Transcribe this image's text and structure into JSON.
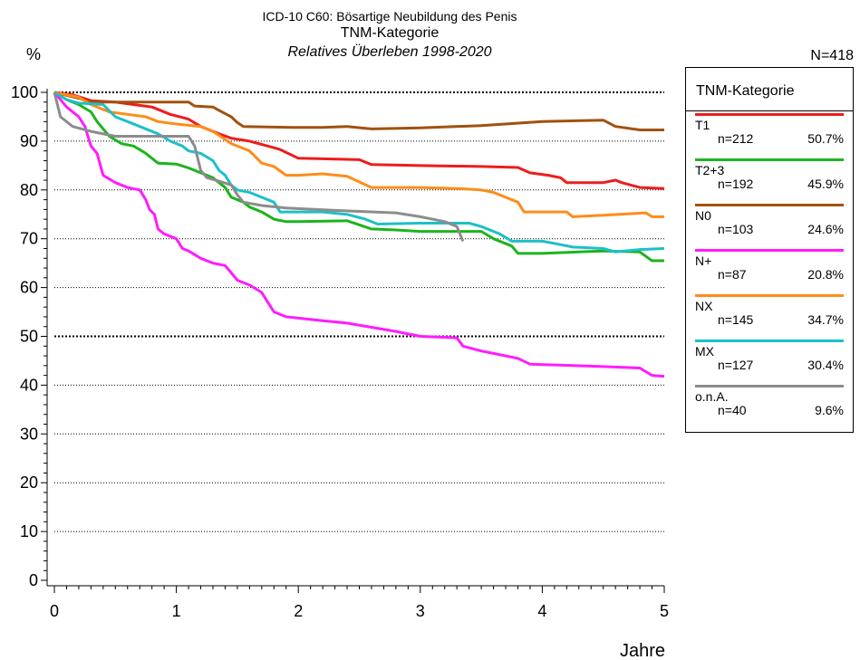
{
  "header": {
    "line1": "ICD-10 C60: Bösartige Neubildung des Penis",
    "line2": "TNM-Kategorie",
    "line3": "Relatives Überleben 1998-2020",
    "n_total": "N=418"
  },
  "legend": {
    "title": "TNM-Kategorie",
    "entries": [
      {
        "label": "T1",
        "n": "n=212",
        "pct": "50.7%",
        "color": "#ee1c1c"
      },
      {
        "label": "T2+3",
        "n": "n=192",
        "pct": "45.9%",
        "color": "#1cb41c"
      },
      {
        "label": "N0",
        "n": "n=103",
        "pct": "24.6%",
        "color": "#a0520f"
      },
      {
        "label": "N+",
        "n": "n=87",
        "pct": "20.8%",
        "color": "#ff1cff"
      },
      {
        "label": "NX",
        "n": "n=145",
        "pct": "34.7%",
        "color": "#ff8c1a"
      },
      {
        "label": "MX",
        "n": "n=127",
        "pct": "30.4%",
        "color": "#1cc0c8"
      },
      {
        "label": "o.n.A.",
        "n": "n=40",
        "pct": "9.6%",
        "color": "#8c8c8c"
      }
    ]
  },
  "chart_data": {
    "type": "line",
    "title": "ICD-10 C60: Bösartige Neubildung des Penis",
    "subtitle": "TNM-Kategorie / Relatives Überleben 1998-2020",
    "xlabel": "Jahre",
    "ylabel": "%",
    "xlim": [
      0,
      5
    ],
    "ylim": [
      0,
      100
    ],
    "x_ticks": [
      0,
      1,
      2,
      3,
      4,
      5
    ],
    "y_ticks": [
      0,
      10,
      20,
      30,
      40,
      50,
      60,
      70,
      80,
      90,
      100
    ],
    "grid": "horizontal dotted, heavier at 50 and 100",
    "legend_position": "right",
    "series": [
      {
        "name": "T1",
        "color": "#ee1c1c",
        "points": [
          [
            0,
            100
          ],
          [
            0.15,
            99.5
          ],
          [
            0.3,
            98.3
          ],
          [
            0.5,
            98
          ],
          [
            0.65,
            97.5
          ],
          [
            0.8,
            97
          ],
          [
            0.95,
            95.5
          ],
          [
            1.1,
            94.5
          ],
          [
            1.2,
            93
          ],
          [
            1.35,
            91.5
          ],
          [
            1.45,
            90.6
          ],
          [
            1.6,
            90
          ],
          [
            1.75,
            89
          ],
          [
            1.85,
            88.3
          ],
          [
            2.0,
            86.5
          ],
          [
            2.5,
            86.2
          ],
          [
            2.6,
            85.2
          ],
          [
            3.0,
            85
          ],
          [
            3.5,
            84.8
          ],
          [
            3.8,
            84.6
          ],
          [
            3.9,
            83.5
          ],
          [
            4.05,
            83
          ],
          [
            4.15,
            82.5
          ],
          [
            4.2,
            81.5
          ],
          [
            4.5,
            81.5
          ],
          [
            4.6,
            82
          ],
          [
            4.65,
            81.5
          ],
          [
            4.8,
            80.5
          ],
          [
            5.0,
            80.3
          ]
        ]
      },
      {
        "name": "T2+3",
        "color": "#1cb41c",
        "points": [
          [
            0,
            100
          ],
          [
            0.1,
            98.5
          ],
          [
            0.2,
            97.5
          ],
          [
            0.3,
            96
          ],
          [
            0.35,
            94
          ],
          [
            0.45,
            91
          ],
          [
            0.55,
            89.5
          ],
          [
            0.65,
            89
          ],
          [
            0.75,
            87.5
          ],
          [
            0.85,
            85.5
          ],
          [
            1.0,
            85.3
          ],
          [
            1.1,
            84.5
          ],
          [
            1.2,
            83.5
          ],
          [
            1.3,
            82.5
          ],
          [
            1.4,
            80.5
          ],
          [
            1.45,
            78.5
          ],
          [
            1.55,
            77.5
          ],
          [
            1.6,
            76.5
          ],
          [
            1.7,
            75.5
          ],
          [
            1.8,
            74
          ],
          [
            1.9,
            73.5
          ],
          [
            2.0,
            73.5
          ],
          [
            2.4,
            73.7
          ],
          [
            2.6,
            72
          ],
          [
            2.8,
            71.8
          ],
          [
            3.0,
            71.5
          ],
          [
            3.5,
            71.5
          ],
          [
            3.6,
            70
          ],
          [
            3.75,
            68.5
          ],
          [
            3.8,
            67
          ],
          [
            4.0,
            67
          ],
          [
            4.5,
            67.5
          ],
          [
            4.8,
            67.3
          ],
          [
            4.9,
            65.5
          ],
          [
            5.0,
            65.5
          ]
        ]
      },
      {
        "name": "N0",
        "color": "#a0520f",
        "points": [
          [
            0,
            100
          ],
          [
            0.2,
            98.8
          ],
          [
            0.3,
            98
          ],
          [
            1.1,
            98
          ],
          [
            1.15,
            97.2
          ],
          [
            1.3,
            97
          ],
          [
            1.35,
            96.3
          ],
          [
            1.45,
            95
          ],
          [
            1.5,
            93.8
          ],
          [
            1.55,
            93
          ],
          [
            1.95,
            92.8
          ],
          [
            2.2,
            92.8
          ],
          [
            2.4,
            93
          ],
          [
            2.6,
            92.5
          ],
          [
            3.0,
            92.7
          ],
          [
            3.5,
            93.2
          ],
          [
            4.0,
            94
          ],
          [
            4.5,
            94.3
          ],
          [
            4.6,
            93
          ],
          [
            4.8,
            92.3
          ],
          [
            5.0,
            92.3
          ]
        ]
      },
      {
        "name": "N+",
        "color": "#ff1cff",
        "points": [
          [
            0,
            100
          ],
          [
            0.1,
            97
          ],
          [
            0.2,
            95
          ],
          [
            0.25,
            93
          ],
          [
            0.3,
            89
          ],
          [
            0.35,
            87.5
          ],
          [
            0.4,
            83
          ],
          [
            0.5,
            81.5
          ],
          [
            0.6,
            80.5
          ],
          [
            0.7,
            80
          ],
          [
            0.75,
            78
          ],
          [
            0.78,
            76
          ],
          [
            0.82,
            75
          ],
          [
            0.85,
            72
          ],
          [
            0.9,
            71
          ],
          [
            1.0,
            70
          ],
          [
            1.05,
            68
          ],
          [
            1.1,
            67.5
          ],
          [
            1.2,
            66
          ],
          [
            1.3,
            65
          ],
          [
            1.4,
            64.5
          ],
          [
            1.45,
            63
          ],
          [
            1.5,
            61.5
          ],
          [
            1.6,
            60.5
          ],
          [
            1.7,
            59
          ],
          [
            1.75,
            57
          ],
          [
            1.8,
            55
          ],
          [
            1.9,
            54
          ],
          [
            2.2,
            53.2
          ],
          [
            2.4,
            52.7
          ],
          [
            2.8,
            51
          ],
          [
            3.0,
            50
          ],
          [
            3.3,
            49.7
          ],
          [
            3.35,
            48
          ],
          [
            3.5,
            47
          ],
          [
            3.6,
            46.5
          ],
          [
            3.8,
            45.5
          ],
          [
            3.9,
            44.3
          ],
          [
            4.5,
            43.8
          ],
          [
            4.8,
            43.5
          ],
          [
            4.9,
            42
          ],
          [
            5.0,
            41.8
          ]
        ]
      },
      {
        "name": "NX",
        "color": "#ff8c1a",
        "points": [
          [
            0,
            100
          ],
          [
            0.2,
            99
          ],
          [
            0.3,
            97.5
          ],
          [
            0.45,
            96
          ],
          [
            0.6,
            95.5
          ],
          [
            0.75,
            95
          ],
          [
            0.85,
            94
          ],
          [
            1.0,
            93.5
          ],
          [
            1.2,
            93
          ],
          [
            1.3,
            92
          ],
          [
            1.45,
            89.5
          ],
          [
            1.6,
            88
          ],
          [
            1.7,
            85.5
          ],
          [
            1.8,
            84.8
          ],
          [
            1.9,
            83
          ],
          [
            2.0,
            83
          ],
          [
            2.2,
            83.3
          ],
          [
            2.4,
            82.8
          ],
          [
            2.6,
            80.5
          ],
          [
            3.0,
            80.5
          ],
          [
            3.3,
            80.3
          ],
          [
            3.5,
            80
          ],
          [
            3.6,
            79.5
          ],
          [
            3.7,
            78.5
          ],
          [
            3.8,
            77.5
          ],
          [
            3.85,
            75.5
          ],
          [
            4.2,
            75.5
          ],
          [
            4.25,
            74.5
          ],
          [
            4.5,
            74.8
          ],
          [
            4.85,
            75.3
          ],
          [
            4.9,
            74.5
          ],
          [
            5.0,
            74.5
          ]
        ]
      },
      {
        "name": "MX",
        "color": "#1cc0c8",
        "points": [
          [
            0,
            100
          ],
          [
            0.1,
            98.5
          ],
          [
            0.2,
            97.8
          ],
          [
            0.4,
            97.5
          ],
          [
            0.5,
            95
          ],
          [
            0.6,
            94
          ],
          [
            0.7,
            93
          ],
          [
            0.85,
            91.5
          ],
          [
            0.95,
            90
          ],
          [
            1.05,
            89
          ],
          [
            1.1,
            88
          ],
          [
            1.2,
            87.5
          ],
          [
            1.3,
            86
          ],
          [
            1.35,
            84
          ],
          [
            1.4,
            83
          ],
          [
            1.45,
            81
          ],
          [
            1.5,
            80
          ],
          [
            1.6,
            79.5
          ],
          [
            1.7,
            78.5
          ],
          [
            1.8,
            77.5
          ],
          [
            1.85,
            75.5
          ],
          [
            2.0,
            75.5
          ],
          [
            2.2,
            75.5
          ],
          [
            2.4,
            75
          ],
          [
            2.55,
            74
          ],
          [
            2.65,
            73
          ],
          [
            3.0,
            73.2
          ],
          [
            3.4,
            73.2
          ],
          [
            3.5,
            72.5
          ],
          [
            3.65,
            71
          ],
          [
            3.75,
            69.5
          ],
          [
            4.0,
            69.5
          ],
          [
            4.15,
            68.8
          ],
          [
            4.25,
            68.3
          ],
          [
            4.5,
            68
          ],
          [
            4.6,
            67.3
          ],
          [
            4.8,
            67.8
          ],
          [
            5.0,
            68
          ]
        ]
      },
      {
        "name": "o.n.A.",
        "color": "#8c8c8c",
        "points": [
          [
            0,
            100
          ],
          [
            0.05,
            95
          ],
          [
            0.15,
            93
          ],
          [
            0.3,
            92
          ],
          [
            0.5,
            91
          ],
          [
            0.8,
            91
          ],
          [
            1.1,
            91
          ],
          [
            1.15,
            89
          ],
          [
            1.2,
            84
          ],
          [
            1.25,
            82.5
          ],
          [
            1.35,
            81.8
          ],
          [
            1.45,
            81
          ],
          [
            1.5,
            79
          ],
          [
            1.55,
            77.5
          ],
          [
            1.7,
            76.8
          ],
          [
            1.9,
            76.3
          ],
          [
            2.3,
            75.8
          ],
          [
            2.8,
            75.3
          ],
          [
            3.0,
            74.5
          ],
          [
            3.2,
            73.5
          ],
          [
            3.3,
            72.5
          ],
          [
            3.35,
            69.5
          ]
        ]
      }
    ]
  }
}
